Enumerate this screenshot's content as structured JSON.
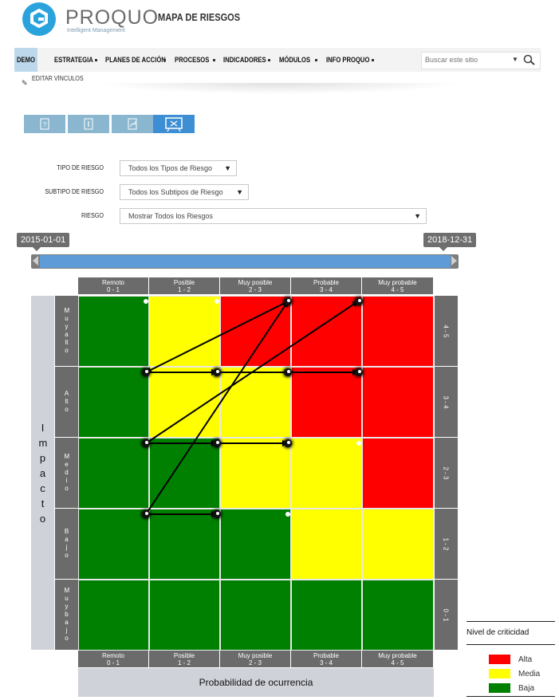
{
  "header": {
    "brand": "PROQUO",
    "brand_sub": "Intelligent Management",
    "site_title": "MAPA DE RIESGOS",
    "edit_links": "EDITAR VÍNCULOS"
  },
  "nav": {
    "items": [
      {
        "label": "DEMO",
        "active": true
      },
      {
        "label": "ESTRATEGIA"
      },
      {
        "label": "PLANES DE ACCIÓN"
      },
      {
        "label": "PROCESOS"
      },
      {
        "label": "INDICADORES"
      },
      {
        "label": "MÓDULOS"
      },
      {
        "label": "INFO PROQUO"
      }
    ],
    "search_placeholder": "Buscar este sitio"
  },
  "view_tabs": [
    {
      "icon": "help-icon",
      "active": false
    },
    {
      "icon": "info-icon",
      "active": false
    },
    {
      "icon": "chart-icon",
      "active": false
    },
    {
      "icon": "presentation-board-icon",
      "active": true
    }
  ],
  "filters": {
    "tipo": {
      "label": "TIPO DE RIESGO",
      "value": "Todos los Tipos de Riesgo"
    },
    "subtipo": {
      "label": "SUBTIPO DE RIESGO",
      "value": "Todos los Subtipos de Riesgo"
    },
    "riesgo": {
      "label": "RIESGO",
      "value": "Mostrar Todos los Riesgos"
    }
  },
  "date_range": {
    "start": "2015-01-01",
    "end": "2018-12-31"
  },
  "matrix": {
    "columns": [
      {
        "name": "Remoto",
        "range": "0 - 1"
      },
      {
        "name": "Posible",
        "range": "1 - 2"
      },
      {
        "name": "Muy posible",
        "range": "2 - 3"
      },
      {
        "name": "Probable",
        "range": "3 - 4"
      },
      {
        "name": "Muy probable",
        "range": "4 - 5"
      }
    ],
    "rows": [
      {
        "name": "Muy alto",
        "range": "4 - 5"
      },
      {
        "name": "Alto",
        "range": "3 - 4"
      },
      {
        "name": "Medio",
        "range": "2 - 3"
      },
      {
        "name": "Bajo",
        "range": "1 - 2"
      },
      {
        "name": "Muy bajo",
        "range": "0 - 1"
      }
    ],
    "cell_levels": [
      [
        "Baja",
        "Media",
        "Alta",
        "Alta",
        "Alta"
      ],
      [
        "Baja",
        "Media",
        "Media",
        "Alta",
        "Alta"
      ],
      [
        "Baja",
        "Baja",
        "Media",
        "Media",
        "Alta"
      ],
      [
        "Baja",
        "Baja",
        "Baja",
        "Media",
        "Media"
      ],
      [
        "Baja",
        "Baja",
        "Baja",
        "Baja",
        "Baja"
      ]
    ],
    "y_axis_label": "Impacto",
    "x_axis_label": "Probabilidad de ocurrencia"
  },
  "legend": {
    "title": "Nivel de criticidad",
    "items": [
      {
        "label": "Alta",
        "color": "#ff0000"
      },
      {
        "label": "Media",
        "color": "#ffff00"
      },
      {
        "label": "Baja",
        "color": "#008000"
      }
    ]
  },
  "colors": {
    "Alta": "#ff0000",
    "Media": "#ffff00",
    "Baja": "#008000",
    "accent": "#2aa3dd"
  }
}
